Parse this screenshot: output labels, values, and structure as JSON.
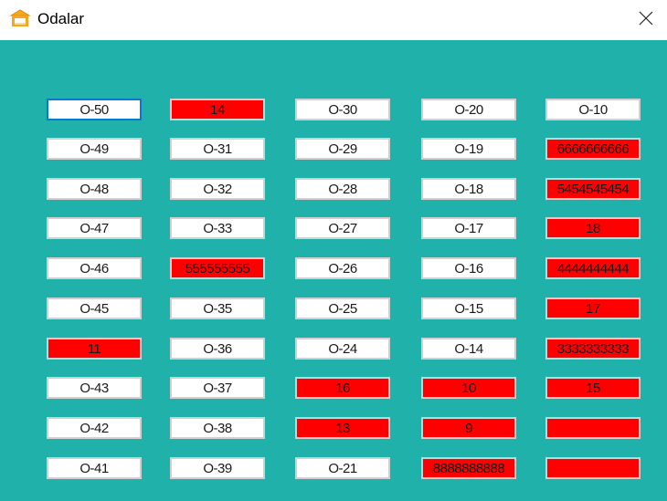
{
  "window": {
    "title": "Odalar",
    "icon": "bed-icon",
    "close_icon": "close-icon"
  },
  "colors": {
    "background": "#20b2aa",
    "available": "#ffffff",
    "occupied": "#ff0000",
    "focus": "#0a78d7"
  },
  "rooms": {
    "col1": [
      {
        "label": "O-50",
        "occupied": false
      },
      {
        "label": "O-49",
        "occupied": false
      },
      {
        "label": "O-48",
        "occupied": false
      },
      {
        "label": "O-47",
        "occupied": false
      },
      {
        "label": "O-46",
        "occupied": false
      },
      {
        "label": "O-45",
        "occupied": false
      },
      {
        "label": "11",
        "occupied": true
      },
      {
        "label": "O-43",
        "occupied": false
      },
      {
        "label": "O-42",
        "occupied": false
      },
      {
        "label": "O-41",
        "occupied": false
      }
    ],
    "col2": [
      {
        "label": "14",
        "occupied": true
      },
      {
        "label": "O-31",
        "occupied": false
      },
      {
        "label": "O-32",
        "occupied": false
      },
      {
        "label": "O-33",
        "occupied": false
      },
      {
        "label": "555555555",
        "occupied": true
      },
      {
        "label": "O-35",
        "occupied": false
      },
      {
        "label": "O-36",
        "occupied": false
      },
      {
        "label": "O-37",
        "occupied": false
      },
      {
        "label": "O-38",
        "occupied": false
      },
      {
        "label": "O-39",
        "occupied": false
      }
    ],
    "col3": [
      {
        "label": "O-30",
        "occupied": false
      },
      {
        "label": "O-29",
        "occupied": false
      },
      {
        "label": "O-28",
        "occupied": false
      },
      {
        "label": "O-27",
        "occupied": false
      },
      {
        "label": "O-26",
        "occupied": false
      },
      {
        "label": "O-25",
        "occupied": false
      },
      {
        "label": "O-24",
        "occupied": false
      },
      {
        "label": "16",
        "occupied": true
      },
      {
        "label": "13",
        "occupied": true
      },
      {
        "label": "O-21",
        "occupied": false
      }
    ],
    "col4": [
      {
        "label": "O-20",
        "occupied": false
      },
      {
        "label": "O-19",
        "occupied": false
      },
      {
        "label": "O-18",
        "occupied": false
      },
      {
        "label": "O-17",
        "occupied": false
      },
      {
        "label": "O-16",
        "occupied": false
      },
      {
        "label": "O-15",
        "occupied": false
      },
      {
        "label": "O-14",
        "occupied": false
      },
      {
        "label": "10",
        "occupied": true
      },
      {
        "label": "9",
        "occupied": true
      },
      {
        "label": "8888888888",
        "occupied": true
      }
    ],
    "col5": [
      {
        "label": "O-10",
        "occupied": false
      },
      {
        "label": "6666666666",
        "occupied": true
      },
      {
        "label": "5454545454",
        "occupied": true
      },
      {
        "label": "18",
        "occupied": true
      },
      {
        "label": "4444444444",
        "occupied": true
      },
      {
        "label": "17",
        "occupied": true
      },
      {
        "label": "3333333333",
        "occupied": true
      },
      {
        "label": "15",
        "occupied": true
      },
      {
        "label": "",
        "occupied": true
      },
      {
        "label": "",
        "occupied": true
      }
    ]
  }
}
